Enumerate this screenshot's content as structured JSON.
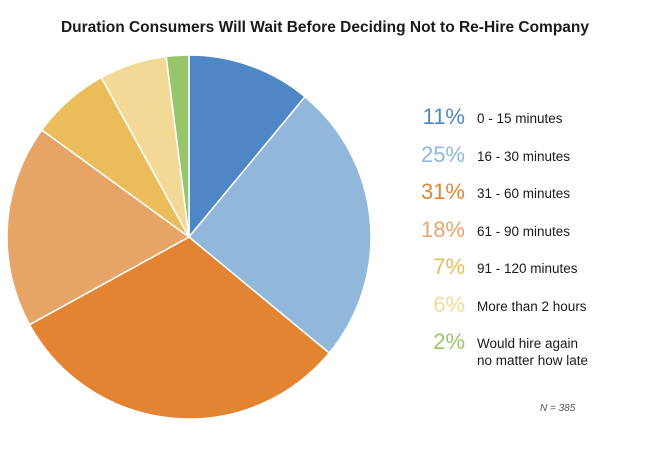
{
  "chart_data": {
    "type": "pie",
    "title": "Duration Consumers Will Wait Before Deciding Not to Re-Hire Company",
    "slices": [
      {
        "pct_label": "11%",
        "label": "0 - 15 minutes",
        "value": 11,
        "color": "#4f86c6"
      },
      {
        "pct_label": "25%",
        "label": "16 - 30 minutes",
        "value": 25,
        "color": "#91b8da"
      },
      {
        "pct_label": "31%",
        "label": "31 - 60 minutes",
        "value": 31,
        "color": "#e38433"
      },
      {
        "pct_label": "18%",
        "label": "61 - 90 minutes",
        "value": 18,
        "color": "#e6a566"
      },
      {
        "pct_label": "7%",
        "label": "91 - 120 minutes",
        "value": 7,
        "color": "#ebbd5a"
      },
      {
        "pct_label": "6%",
        "label": "More than 2 hours",
        "value": 6,
        "color": "#f2da96"
      },
      {
        "pct_label": "2%",
        "label": "Would hire again no matter how late",
        "label_lines": [
          "Would hire again",
          "no matter how late"
        ],
        "value": 2,
        "color": "#97c66a"
      }
    ],
    "legend_position": "right",
    "sample_note": "N = 385"
  }
}
